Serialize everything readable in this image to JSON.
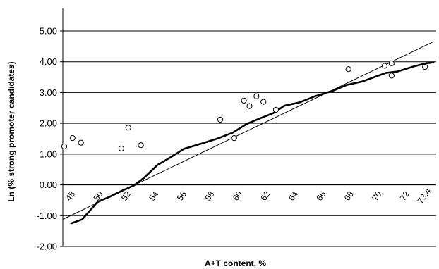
{
  "chart_data": {
    "type": "scatter",
    "title": "",
    "xlabel": "A+T content, %",
    "ylabel": "Ln (% strong promoter candidates)",
    "x_range": [
      47.4,
      74.2
    ],
    "ylim": [
      -2.0,
      5.0
    ],
    "y_ticks": [
      "5.00",
      "4.00",
      "3.00",
      "2.00",
      "1.00",
      "0.00",
      "-1.00",
      "-2.00"
    ],
    "x_ticks": [
      "48",
      "50",
      "52",
      "54",
      "56",
      "58",
      "60",
      "62",
      "64",
      "66",
      "68",
      "70",
      "72",
      "73.4"
    ],
    "grid": "horizontal",
    "legend": "none",
    "series": [
      {
        "kind": "scatter",
        "marker": "open-circle",
        "points": [
          {
            "x": 47.5,
            "y": 1.25
          },
          {
            "x": 48.1,
            "y": 1.52
          },
          {
            "x": 48.7,
            "y": 1.37
          },
          {
            "x": 51.6,
            "y": 1.18
          },
          {
            "x": 52.1,
            "y": 1.86
          },
          {
            "x": 53.0,
            "y": 1.29
          },
          {
            "x": 58.7,
            "y": 2.12
          },
          {
            "x": 59.7,
            "y": 1.52
          },
          {
            "x": 60.4,
            "y": 2.74
          },
          {
            "x": 60.8,
            "y": 2.56
          },
          {
            "x": 61.3,
            "y": 2.88
          },
          {
            "x": 61.8,
            "y": 2.7
          },
          {
            "x": 62.7,
            "y": 2.44
          },
          {
            "x": 67.9,
            "y": 3.76
          },
          {
            "x": 70.5,
            "y": 3.87
          },
          {
            "x": 71.0,
            "y": 3.95
          },
          {
            "x": 71.0,
            "y": 3.55
          },
          {
            "x": 73.4,
            "y": 3.83
          }
        ]
      },
      {
        "kind": "line",
        "style": "thick",
        "points": [
          {
            "x": 48.0,
            "y": -1.25
          },
          {
            "x": 48.8,
            "y": -1.12
          },
          {
            "x": 49.9,
            "y": -0.55
          },
          {
            "x": 50.7,
            "y": -0.4
          },
          {
            "x": 51.6,
            "y": -0.2
          },
          {
            "x": 52.5,
            "y": -0.02
          },
          {
            "x": 53.2,
            "y": 0.22
          },
          {
            "x": 54.2,
            "y": 0.65
          },
          {
            "x": 55.0,
            "y": 0.86
          },
          {
            "x": 56.1,
            "y": 1.17
          },
          {
            "x": 57.4,
            "y": 1.35
          },
          {
            "x": 58.6,
            "y": 1.52
          },
          {
            "x": 59.6,
            "y": 1.7
          },
          {
            "x": 60.6,
            "y": 1.98
          },
          {
            "x": 61.5,
            "y": 2.15
          },
          {
            "x": 62.5,
            "y": 2.33
          },
          {
            "x": 63.3,
            "y": 2.57
          },
          {
            "x": 64.4,
            "y": 2.68
          },
          {
            "x": 65.5,
            "y": 2.88
          },
          {
            "x": 66.8,
            "y": 3.06
          },
          {
            "x": 67.8,
            "y": 3.25
          },
          {
            "x": 68.9,
            "y": 3.36
          },
          {
            "x": 70.6,
            "y": 3.64
          },
          {
            "x": 71.4,
            "y": 3.68
          },
          {
            "x": 72.6,
            "y": 3.85
          },
          {
            "x": 73.5,
            "y": 3.95
          },
          {
            "x": 74.0,
            "y": 3.98
          }
        ]
      },
      {
        "kind": "line",
        "style": "thin",
        "points": [
          {
            "x": 47.4,
            "y": -1.12
          },
          {
            "x": 73.9,
            "y": 4.63
          }
        ]
      }
    ]
  }
}
